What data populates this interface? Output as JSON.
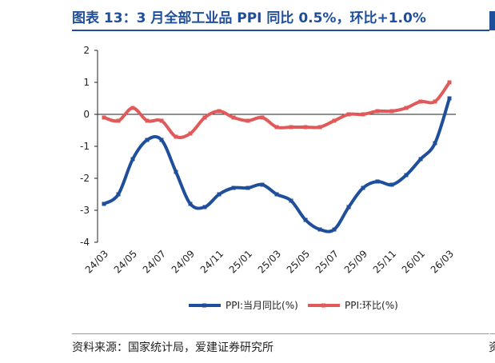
{
  "title": "图表 13：3 月全部工业品 PPI 同比 0.5%，环比+1.0%",
  "source": "资料来源：国家统计局，爱建证券研究所",
  "side_char": "资",
  "colors": {
    "title": "#1f4e9b",
    "yoy": "#1f4e9b",
    "mom": "#e05a5a",
    "axis": "#222222"
  },
  "chart_data": {
    "type": "line",
    "x": [
      "24/03",
      "24/04",
      "24/05",
      "24/06",
      "24/07",
      "24/08",
      "24/09",
      "24/10",
      "24/11",
      "24/12",
      "25/01",
      "25/02",
      "25/03",
      "25/04",
      "25/05",
      "25/06",
      "25/07",
      "25/08",
      "25/09",
      "25/10",
      "25/11",
      "25/12",
      "26/01",
      "26/02",
      "26/03"
    ],
    "x_tick_labels": [
      "24/03",
      "24/05",
      "24/07",
      "24/09",
      "24/11",
      "25/01",
      "25/03",
      "25/05",
      "25/07",
      "25/09",
      "25/11",
      "26/01",
      "26/03"
    ],
    "y_tick_labels": [
      "2",
      "1",
      "0",
      "-1",
      "-2",
      "-3",
      "-4"
    ],
    "ylim": [
      -4,
      2
    ],
    "grid": false,
    "legend_position": "bottom",
    "series": [
      {
        "name": "PPI:当月同比(%)",
        "color": "#1f4e9b",
        "values": [
          -2.8,
          -2.5,
          -1.4,
          -0.8,
          -0.8,
          -1.8,
          -2.8,
          -2.9,
          -2.5,
          -2.3,
          -2.3,
          -2.2,
          -2.5,
          -2.7,
          -3.3,
          -3.6,
          -3.6,
          -2.9,
          -2.3,
          -2.1,
          -2.2,
          -1.9,
          -1.4,
          -0.9,
          0.5
        ]
      },
      {
        "name": "PPI:环比(%)",
        "color": "#e05a5a",
        "values": [
          -0.1,
          -0.2,
          0.2,
          -0.2,
          -0.2,
          -0.7,
          -0.6,
          -0.1,
          0.1,
          -0.1,
          -0.2,
          -0.1,
          -0.4,
          -0.4,
          -0.4,
          -0.4,
          -0.2,
          0.0,
          0.0,
          0.1,
          0.1,
          0.2,
          0.4,
          0.4,
          1.0
        ]
      }
    ]
  }
}
